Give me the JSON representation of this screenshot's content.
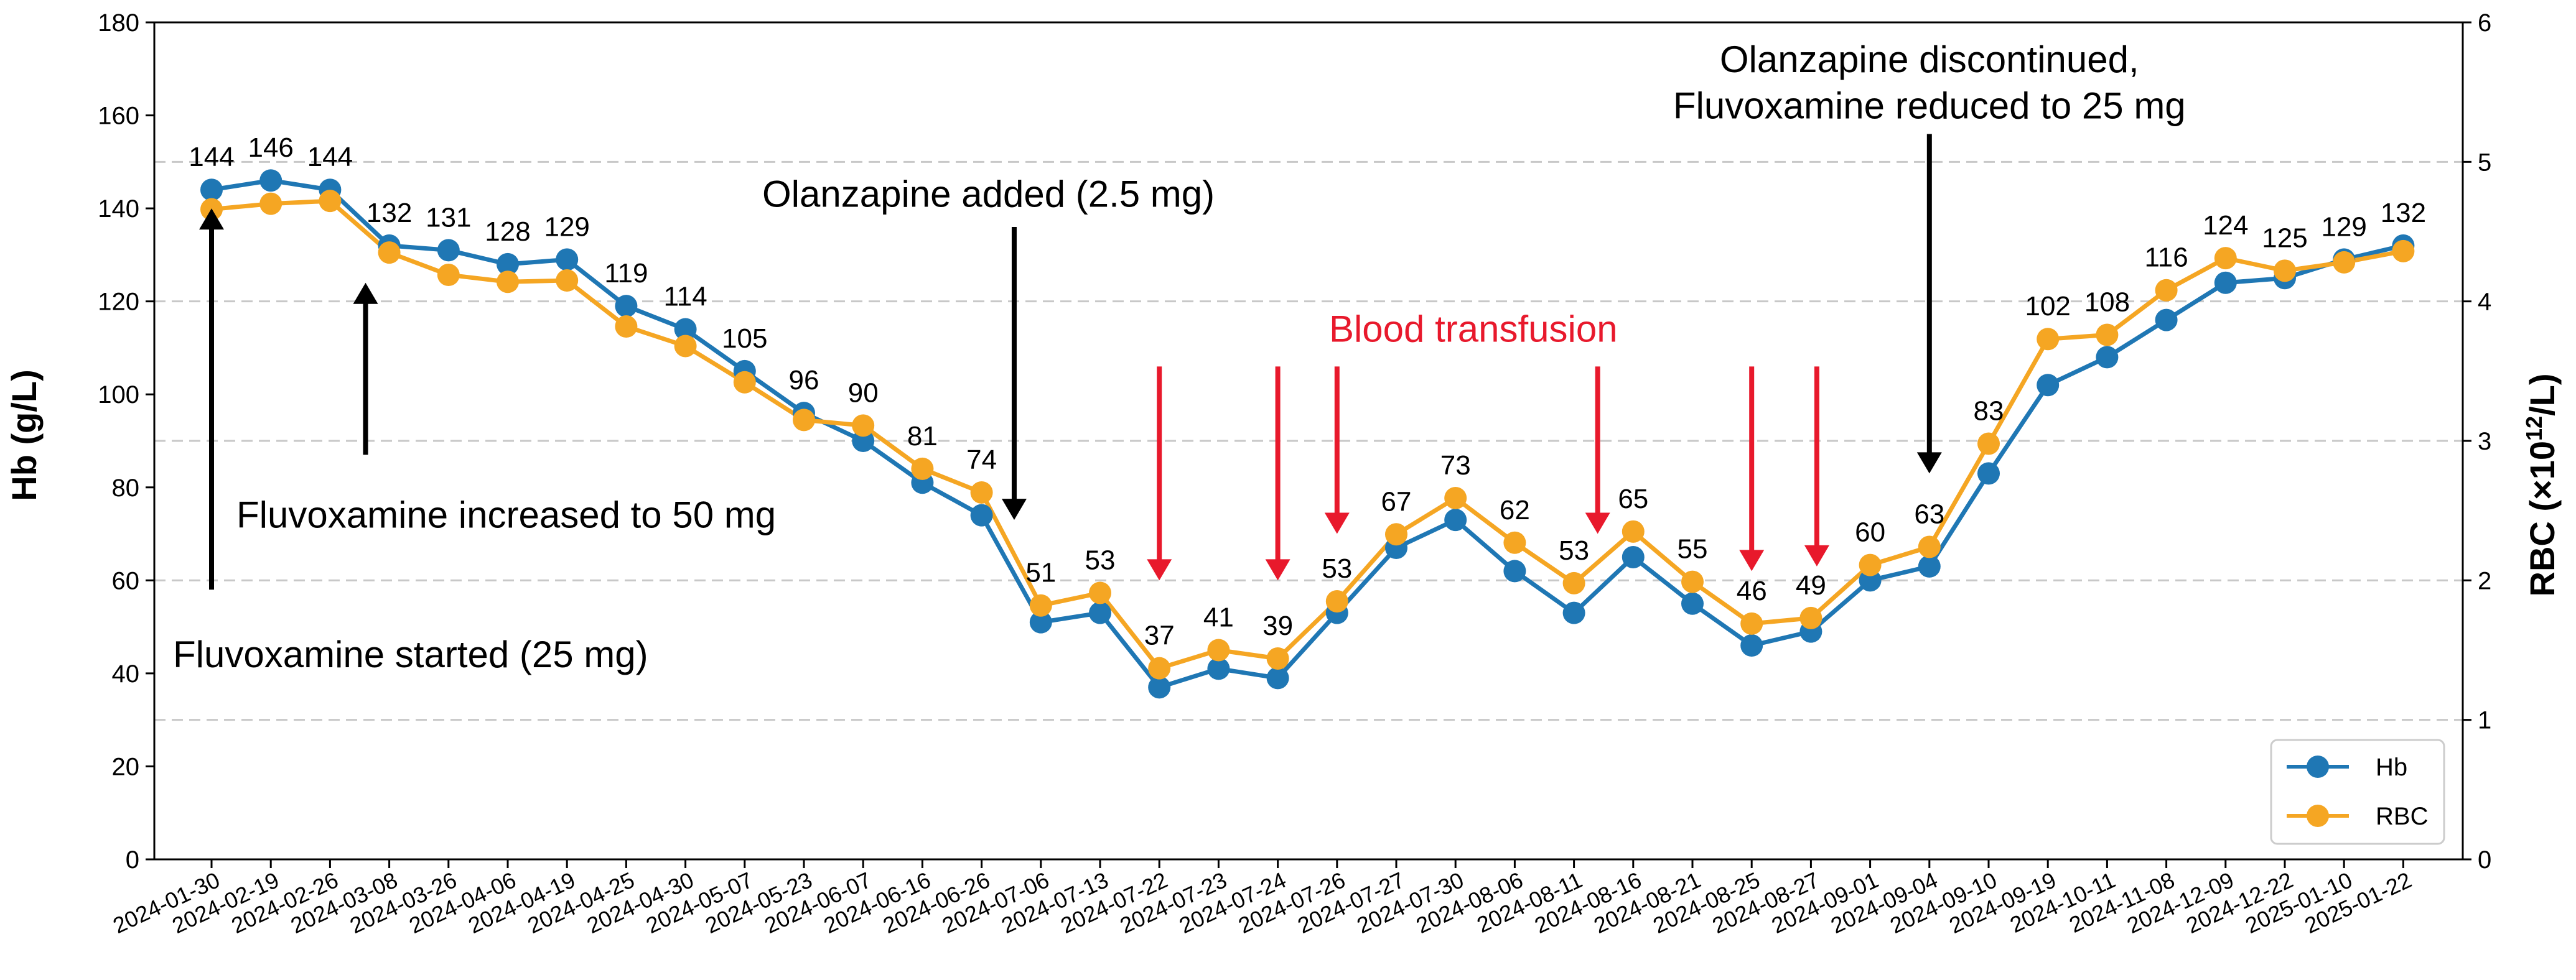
{
  "colors": {
    "hb": "#1f77b4",
    "rbc": "#f5a623",
    "arrow_black": "#000000",
    "arrow_red": "#e8192c",
    "grid": "#c8c8c8"
  },
  "chart_data": {
    "type": "line",
    "categories": [
      "2024-01-30",
      "2024-02-19",
      "2024-02-26",
      "2024-03-08",
      "2024-03-26",
      "2024-04-06",
      "2024-04-19",
      "2024-04-25",
      "2024-04-30",
      "2024-05-07",
      "2024-05-23",
      "2024-06-07",
      "2024-06-16",
      "2024-06-26",
      "2024-07-06",
      "2024-07-13",
      "2024-07-22",
      "2024-07-23",
      "2024-07-24",
      "2024-07-26",
      "2024-07-27",
      "2024-07-30",
      "2024-08-06",
      "2024-08-11",
      "2024-08-16",
      "2024-08-21",
      "2024-08-25",
      "2024-08-27",
      "2024-09-01",
      "2024-09-04",
      "2024-09-10",
      "2024-09-19",
      "2024-10-11",
      "2024-11-08",
      "2024-12-09",
      "2024-12-22",
      "2025-01-10",
      "2025-01-22"
    ],
    "series": [
      {
        "name": "Hb",
        "axis": "left",
        "values": [
          144,
          146,
          144,
          132,
          131,
          128,
          129,
          119,
          114,
          105,
          96,
          90,
          81,
          74,
          51,
          53,
          37,
          41,
          39,
          53,
          67,
          73,
          62,
          53,
          65,
          55,
          46,
          49,
          60,
          63,
          83,
          102,
          108,
          116,
          124,
          125,
          129,
          132
        ]
      },
      {
        "name": "RBC",
        "axis": "right",
        "values": [
          4.66,
          4.7,
          4.72,
          4.35,
          4.19,
          4.14,
          4.15,
          3.82,
          3.68,
          3.42,
          3.15,
          3.11,
          2.8,
          2.63,
          1.82,
          1.91,
          1.37,
          1.5,
          1.44,
          1.85,
          2.33,
          2.59,
          2.27,
          1.98,
          2.35,
          1.99,
          1.69,
          1.73,
          2.11,
          2.24,
          2.98,
          3.73,
          3.76,
          4.08,
          4.31,
          4.22,
          4.28,
          4.36
        ]
      }
    ],
    "data_labels": [
      "144",
      "146",
      "144",
      "132",
      "131",
      "128",
      "129",
      "119",
      "114",
      "105",
      "96",
      "90",
      "81",
      "74",
      "51",
      "53",
      "37",
      "41",
      "39",
      "53",
      "67",
      "73",
      "62",
      "53",
      "65",
      "55",
      "46",
      "49",
      "60",
      "63",
      "83",
      "102",
      "108",
      "116",
      "124",
      "125",
      "129",
      "132"
    ],
    "y_left": {
      "label": "Hb (g/L)",
      "ylim": [
        0,
        180
      ],
      "ticks": [
        "0",
        "20",
        "40",
        "60",
        "80",
        "100",
        "120",
        "140",
        "160",
        "180"
      ]
    },
    "y_right": {
      "label_prefix": "RBC (×10",
      "label_sup": "12",
      "label_suffix": "/L)",
      "ylim": [
        0,
        6
      ],
      "ticks": [
        "0",
        "1",
        "2",
        "3",
        "4",
        "5",
        "6"
      ]
    },
    "grid": {
      "horizontal_dashed_at_right": [
        1,
        2,
        3,
        4,
        5
      ]
    },
    "legend": {
      "position": "bottom-right",
      "items": [
        "Hb",
        "RBC"
      ]
    },
    "annotations": {
      "black": [
        {
          "text": "Fluvoxamine started (25 mg)",
          "arrow_index": 0,
          "arrow_from": 58,
          "arrow_to": 140
        },
        {
          "text": "Fluvoxamine increased to 50 mg",
          "arrow_index": 2.6,
          "arrow_from": 87,
          "arrow_to": 124
        },
        {
          "text": "Olanzapine added (2.5 mg)",
          "arrow_index": 13.55,
          "arrow_from": 136,
          "arrow_to": 73
        },
        {
          "text_lines": [
            "Olanzapine discontinued,",
            "Fluvoxamine reduced to 25 mg"
          ],
          "arrow_index": 29,
          "arrow_from": 156,
          "arrow_to": 83
        }
      ],
      "red_title": "Blood transfusion",
      "red_arrows": [
        {
          "arrow_index": 16,
          "arrow_from": 106,
          "arrow_to": 60
        },
        {
          "arrow_index": 18,
          "arrow_from": 106,
          "arrow_to": 60
        },
        {
          "arrow_index": 19,
          "arrow_from": 106,
          "arrow_to": 70
        },
        {
          "arrow_index": 23.4,
          "arrow_from": 106,
          "arrow_to": 70
        },
        {
          "arrow_index": 26,
          "arrow_from": 106,
          "arrow_to": 62
        },
        {
          "arrow_index": 27.1,
          "arrow_from": 106,
          "arrow_to": 63
        }
      ]
    }
  }
}
